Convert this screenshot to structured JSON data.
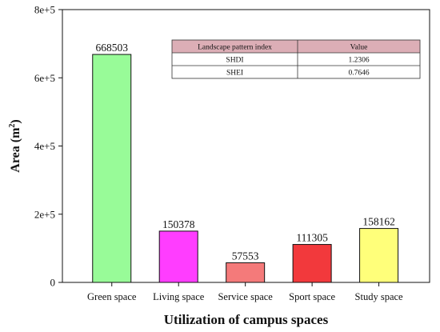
{
  "chart_data": {
    "type": "bar",
    "categories": [
      "Green space",
      "Living space",
      "Service space",
      "Sport space",
      "Study space"
    ],
    "values": [
      668503,
      150378,
      57553,
      111305,
      158162
    ],
    "value_labels": [
      "668503",
      "150378",
      "57553",
      "111305",
      "158162"
    ],
    "bar_colors": [
      "#98fb98",
      "#ff3dff",
      "#f47a7a",
      "#f2393c",
      "#ffff7a"
    ],
    "xlabel": "Utilization of campus spaces",
    "ylabel_main": "Area (m",
    "ylabel_sup": "2",
    "ylabel_close": ")",
    "ylim": [
      0,
      800000
    ],
    "yticks": [
      0,
      200000,
      400000,
      600000,
      800000
    ],
    "ytick_labels": [
      "0",
      "2e+5",
      "4e+5",
      "6e+5",
      "8e+5"
    ],
    "grid": false,
    "inset_table": {
      "header_color": "#dcaeb6",
      "columns": [
        "Landscape pattern index",
        "Value"
      ],
      "rows": [
        [
          "SHDI",
          "1.2306"
        ],
        [
          "SHEI",
          "0.7646"
        ]
      ]
    }
  }
}
